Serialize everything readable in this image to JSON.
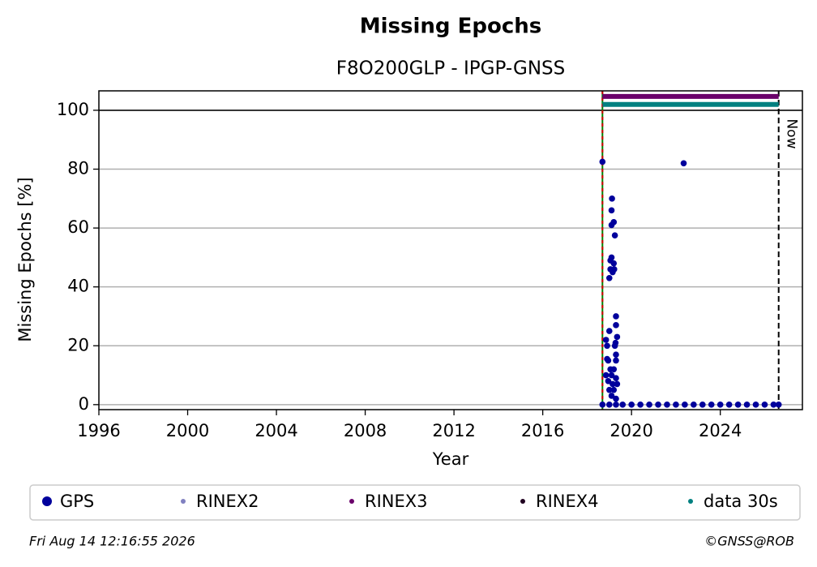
{
  "chart_data": {
    "type": "scatter",
    "title": "Missing Epochs",
    "subtitle": "F8O200GLP - IPGP-GNSS",
    "x_label": "Year",
    "y_label": "Missing Epochs [%]",
    "xlim": [
      1996,
      2027.7
    ],
    "ylim": [
      -1.7,
      106.6
    ],
    "xticks": [
      1996,
      2000,
      2004,
      2008,
      2012,
      2016,
      2020,
      2024
    ],
    "yticks": [
      0,
      20,
      40,
      60,
      80,
      100
    ],
    "grid": true,
    "hline": 100,
    "start_line": 2018.69,
    "now_line": 2026.63,
    "now_label": "Now",
    "series": [
      {
        "name": "GPS",
        "color": "#00009c",
        "x": [
          2018.69,
          2018.69,
          2022.35,
          2018.85,
          2018.9,
          2018.95,
          2018.9,
          2018.85,
          2018.95,
          2019.0,
          2019.0,
          2019.05,
          2019.1,
          2019.05,
          2019.1,
          2019.12,
          2019.1,
          2019.2,
          2019.25,
          2019.2,
          2019.22,
          2019.15,
          2019.3,
          2019.3,
          2019.35,
          2019.28,
          2019.25,
          2019.3,
          2019.3,
          2019.2,
          2019.1,
          2019.3,
          2019.35,
          2019.2,
          2019.1,
          2019.3,
          2019.0,
          2019.15,
          2019.05,
          2019.0,
          2019.3,
          2019.6,
          2020.0,
          2020.4,
          2020.8,
          2021.2,
          2021.6,
          2022.0,
          2022.4,
          2022.8,
          2023.2,
          2023.6,
          2024.0,
          2024.4,
          2024.8,
          2025.2,
          2025.6,
          2026.0,
          2026.4,
          2026.63
        ],
        "values": [
          82.5,
          0,
          82,
          22,
          20,
          15,
          15.5,
          10,
          8,
          25,
          43,
          49,
          50,
          46,
          66,
          70,
          61,
          62,
          57.5,
          48,
          46,
          45,
          30,
          27,
          23,
          21,
          20,
          17,
          15,
          12,
          10,
          9,
          7,
          5,
          3,
          2,
          5,
          7,
          12,
          0,
          0,
          0,
          0,
          0,
          0,
          0,
          0,
          0,
          0,
          0,
          0,
          0,
          0,
          0,
          0,
          0,
          0,
          0,
          0,
          0
        ]
      },
      {
        "name": "RINEX2",
        "color": "#8080c0",
        "x": [],
        "values": []
      },
      {
        "name": "RINEX3",
        "color": "#6a006a",
        "x": [
          2018.69,
          2026.63
        ],
        "values": [
          104.7,
          104.7
        ]
      },
      {
        "name": "RINEX4",
        "color": "#200020",
        "x": [],
        "values": []
      },
      {
        "name": "data 30s",
        "color": "#008080",
        "x": [
          2018.69,
          2026.63
        ],
        "values": [
          102,
          102
        ]
      }
    ]
  },
  "footer": {
    "date": "Fri Aug 14 12:16:55 2026",
    "credit": "©GNSS@ROB"
  }
}
